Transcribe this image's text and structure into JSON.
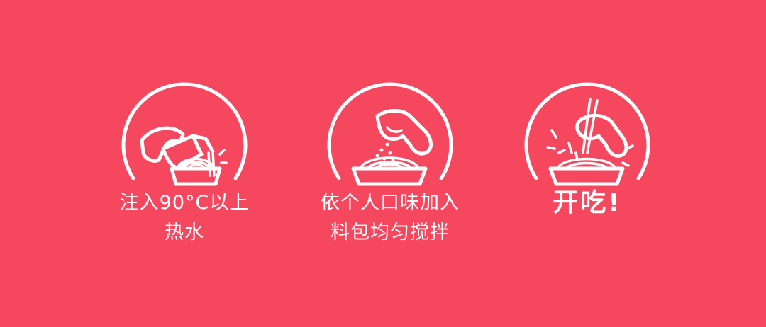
{
  "background_color": "#f5485f",
  "foreground_color": "#ffffff",
  "steps": [
    {
      "icon": "pour-hot-water-icon",
      "lines": [
        "注入90°C以上",
        "热水"
      ]
    },
    {
      "icon": "add-seasoning-icon",
      "lines": [
        "依个人口味加入",
        "料包均匀搅拌"
      ]
    },
    {
      "icon": "chopsticks-eat-icon",
      "lines": [
        "开吃!"
      ]
    }
  ]
}
